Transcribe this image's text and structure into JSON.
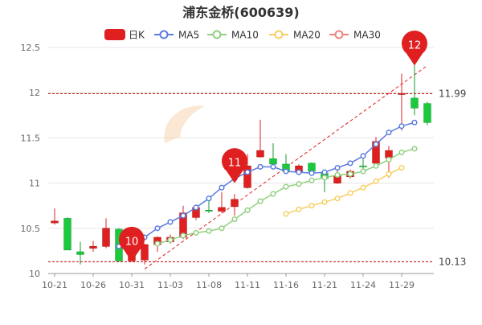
{
  "chart_data": {
    "type": "candlestick",
    "title": "浦东金桥(600639)",
    "legend": [
      {
        "name": "日K",
        "color": "#e02020"
      },
      {
        "name": "MA5",
        "color": "#5b7be0"
      },
      {
        "name": "MA10",
        "color": "#90d080"
      },
      {
        "name": "MA20",
        "color": "#f5d060"
      },
      {
        "name": "MA30",
        "color": "#f08080"
      }
    ],
    "x_tick_labels": [
      "10-21",
      "10-26",
      "10-31",
      "11-03",
      "11-08",
      "11-11",
      "11-16",
      "11-21",
      "11-24",
      "11-29"
    ],
    "x_tick_index": [
      0,
      3,
      6,
      9,
      12,
      15,
      18,
      21,
      24,
      27
    ],
    "ylim": [
      10,
      12.5
    ],
    "y_ticks": [
      10,
      10.5,
      11,
      11.5,
      12,
      12.5
    ],
    "y_tick_labels": [
      "10",
      "10.5",
      "11",
      "11.5",
      "12",
      "12.5"
    ],
    "ref_lines": [
      {
        "value": 11.99,
        "label": "11.99"
      },
      {
        "value": 10.13,
        "label": "10.13"
      }
    ],
    "markers": [
      {
        "index": 6,
        "value": 10.13,
        "label": "10"
      },
      {
        "index": 14,
        "value": 11.0,
        "label": "11"
      },
      {
        "index": 28,
        "value": 12.3,
        "label": "12"
      }
    ],
    "trend_line": {
      "from": {
        "index": 7,
        "value": 10.05
      },
      "to": {
        "index": 29,
        "value": 12.3
      }
    },
    "watermark": "南方财富网 southmoney.com",
    "colors": {
      "up": "#e02020",
      "down": "#1cc83e",
      "up_wick": "#e02020",
      "down_wick": "#1a9a30"
    },
    "candles": [
      {
        "o": 10.56,
        "c": 10.58,
        "h": 10.72,
        "l": 10.54
      },
      {
        "o": 10.61,
        "c": 10.26,
        "h": 10.62,
        "l": 10.26
      },
      {
        "o": 10.24,
        "c": 10.21,
        "h": 10.35,
        "l": 10.1
      },
      {
        "o": 10.28,
        "c": 10.3,
        "h": 10.36,
        "l": 10.24
      },
      {
        "o": 10.3,
        "c": 10.5,
        "h": 10.61,
        "l": 10.28
      },
      {
        "o": 10.49,
        "c": 10.14,
        "h": 10.5,
        "l": 10.13
      },
      {
        "o": 10.14,
        "c": 10.3,
        "h": 10.33,
        "l": 10.13
      },
      {
        "o": 10.15,
        "c": 10.32,
        "h": 10.33,
        "l": 10.1
      },
      {
        "o": 10.32,
        "c": 10.4,
        "h": 10.41,
        "l": 10.24
      },
      {
        "o": 10.35,
        "c": 10.4,
        "h": 10.43,
        "l": 10.33
      },
      {
        "o": 10.4,
        "c": 10.67,
        "h": 10.75,
        "l": 10.38
      },
      {
        "o": 10.62,
        "c": 10.73,
        "h": 10.75,
        "l": 10.59
      },
      {
        "o": 10.7,
        "c": 10.69,
        "h": 10.81,
        "l": 10.67
      },
      {
        "o": 10.69,
        "c": 10.73,
        "h": 10.9,
        "l": 10.67
      },
      {
        "o": 10.74,
        "c": 10.82,
        "h": 10.88,
        "l": 10.64
      },
      {
        "o": 10.95,
        "c": 11.19,
        "h": 11.32,
        "l": 10.94
      },
      {
        "o": 11.29,
        "c": 11.36,
        "h": 11.7,
        "l": 11.28
      },
      {
        "o": 11.27,
        "c": 11.21,
        "h": 11.44,
        "l": 11.16
      },
      {
        "o": 11.21,
        "c": 11.13,
        "h": 11.32,
        "l": 11.13
      },
      {
        "o": 11.12,
        "c": 11.19,
        "h": 11.21,
        "l": 11.12
      },
      {
        "o": 11.22,
        "c": 11.13,
        "h": 11.23,
        "l": 11.1
      },
      {
        "o": 11.11,
        "c": 11.05,
        "h": 11.13,
        "l": 10.9
      },
      {
        "o": 11.0,
        "c": 11.08,
        "h": 11.2,
        "l": 10.99
      },
      {
        "o": 11.07,
        "c": 11.13,
        "h": 11.15,
        "l": 11.05
      },
      {
        "o": 11.19,
        "c": 11.18,
        "h": 11.32,
        "l": 11.12
      },
      {
        "o": 11.22,
        "c": 11.46,
        "h": 11.51,
        "l": 11.21
      },
      {
        "o": 11.28,
        "c": 11.36,
        "h": 11.41,
        "l": 11.06
      },
      {
        "o": 11.98,
        "c": 11.99,
        "h": 12.21,
        "l": 11.58
      },
      {
        "o": 11.94,
        "c": 11.83,
        "h": 12.33,
        "l": 11.75
      },
      {
        "o": 11.88,
        "c": 11.67,
        "h": 11.9,
        "l": 11.64
      }
    ],
    "ma": [
      {
        "name": "MA5",
        "color": "#5b7be0",
        "start": 5,
        "values": [
          10.3,
          10.27,
          10.4,
          10.5,
          10.57,
          10.64,
          10.73,
          10.83,
          10.95,
          11.05,
          11.12,
          11.18,
          11.18,
          11.13,
          11.12,
          11.11,
          11.12,
          11.17,
          11.22,
          11.3,
          11.43,
          11.56,
          11.63,
          11.67
        ]
      },
      {
        "name": "MA10",
        "color": "#90d080",
        "start": 8,
        "values": [
          10.33,
          10.37,
          10.42,
          10.45,
          10.47,
          10.5,
          10.6,
          10.7,
          10.8,
          10.88,
          10.96,
          10.99,
          11.03,
          11.06,
          11.09,
          11.1,
          11.13,
          11.19,
          11.26,
          11.34,
          11.38
        ]
      },
      {
        "name": "MA20",
        "color": "#f5d060",
        "start": 18,
        "values": [
          10.66,
          10.71,
          10.75,
          10.79,
          10.83,
          10.89,
          10.95,
          11.02,
          11.1,
          11.17
        ]
      }
    ]
  }
}
